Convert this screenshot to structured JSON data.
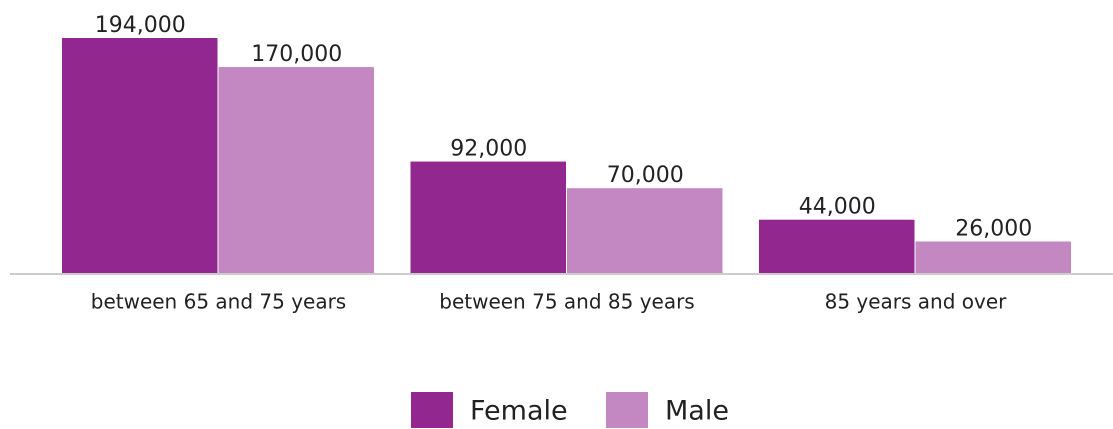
{
  "chart_data": {
    "type": "bar",
    "categories": [
      "between 65 and 75 years",
      "between 75 and 85 years",
      "85 years and over"
    ],
    "series": [
      {
        "name": "Female",
        "color": "#92278f",
        "values": [
          194000,
          92000,
          44000
        ],
        "value_labels": [
          "194,000",
          "92,000",
          "44,000"
        ]
      },
      {
        "name": "Male",
        "color": "#c387c1",
        "values": [
          170000,
          70000,
          26000
        ],
        "value_labels": [
          "170,000",
          "70,000",
          "26,000"
        ]
      }
    ],
    "legend": "bottom"
  }
}
